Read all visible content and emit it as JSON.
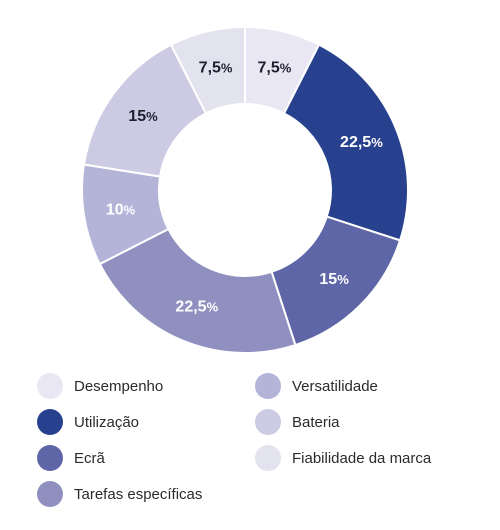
{
  "chart_data": {
    "type": "pie",
    "donut": true,
    "title": "",
    "categories": [
      "Desempenho",
      "Utilização",
      "Ecrã",
      "Tarefas específicas",
      "Versatilidade",
      "Bateria",
      "Fiabilidade da marca"
    ],
    "series": [
      {
        "values": [
          7.5,
          22.5,
          15,
          22.5,
          10,
          15,
          7.5
        ]
      }
    ],
    "value_labels": [
      "7,5",
      "22,5",
      "15",
      "22,5",
      "10",
      "15",
      "7,5"
    ],
    "value_suffix": "%",
    "colors": [
      "#e8e7f3",
      "#28418f",
      "#5e66a8",
      "#8f90c0",
      "#b3b4d8",
      "#cccbe3",
      "#e3e2ef"
    ],
    "label_colors": [
      "#1f1f2e",
      "#ffffff",
      "#ffffff",
      "#ffffff",
      "#ffffff",
      "#1f1f2e",
      "#1f1f2e"
    ],
    "legend": {
      "placement": "bottom",
      "columns": 2
    }
  }
}
